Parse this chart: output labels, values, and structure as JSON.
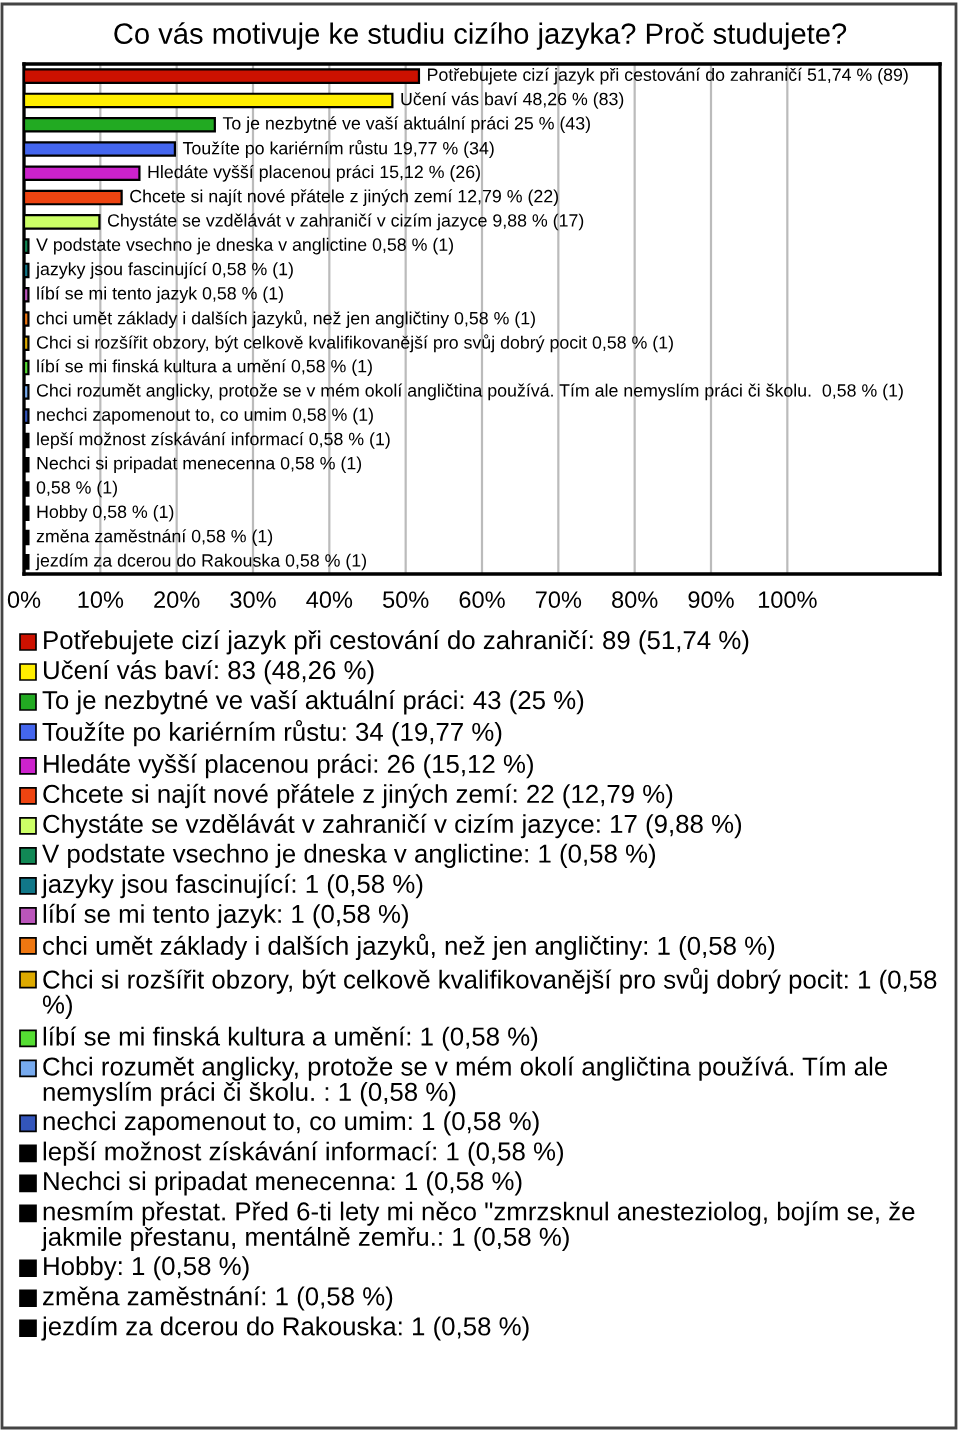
{
  "chart_data": {
    "type": "bar",
    "orientation": "horizontal",
    "title": "Co vás motivuje ke studiu cizího jazyka? Proč studujete?",
    "categories": [
      null,
      null,
      null,
      null,
      null,
      null,
      null,
      null,
      null,
      null,
      null,
      null,
      null,
      null,
      null,
      null,
      null,
      null,
      null,
      null,
      null
    ],
    "values": [
      51.74,
      48.26,
      25,
      19.77,
      15.12,
      12.79,
      9.88,
      0.58,
      0.58,
      0.58,
      0.58,
      0.58,
      0.58,
      0.58,
      0.58,
      0.58,
      0.58,
      0.58,
      0.58,
      0.58,
      0.58
    ],
    "colors": [
      "#cc1100",
      "#ffee00",
      "#22aa22",
      "#4466ee",
      "#cc22cc",
      "#ee4411",
      "#ccff66",
      "#118855",
      "#117788",
      "#bb55bb",
      "#ee7711",
      "#ddaa00",
      "#55dd33",
      "#77aaee",
      "#3355bb",
      "#000000",
      "#000000",
      "#000000",
      "#000000",
      "#000000",
      "#000000"
    ],
    "value_labels": [
      "Potřebujete cizí jazyk při cestování do zahraničí 51,74 % (89)",
      "Učení vás baví 48,26 % (83)",
      "To je nezbytné ve vaší aktuální práci 25 % (43)",
      "Toužíte po kariérním růstu 19,77 % (34)",
      "Hledáte vyšší placenou práci 15,12 % (26)",
      "Chcete si najít nové přátele z jiných zemí 12,79 % (22)",
      "Chystáte se vzdělávát v zahraničí v cizím jazyce 9,88 % (17)",
      "V podstate vsechno je dneska v anglictine 0,58 % (1)",
      "jazyky jsou fascinující 0,58 % (1)",
      "líbí se mi tento jazyk 0,58 % (1)",
      "chci umět základy i dalších jazyků, než jen angličtiny 0,58 % (1)",
      "Chci si rozšířit obzory, být celkově kvalifikovanější pro svůj dobrý pocit 0,58 % (1)",
      "líbí se mi finská kultura a umění 0,58 % (1)",
      "Chci rozumět anglicky, protože se v mém okolí angličtina používá. Tím ale nemyslím práci či školu.  0,58 % (1)",
      "nechci zapomenout to, co umim 0,58 % (1)",
      "lepší možnost získávání informací 0,58 % (1)",
      "Nechci si pripadat menecenna 0,58 % (1)",
      "0,58 % (1)",
      "Hobby 0,58 % (1)",
      "změna zaměstnání 0,58 % (1)",
      "jezdím za dcerou do Rakouska 0,58 % (1)"
    ],
    "xlim": [
      0,
      120
    ],
    "xticks": [
      {
        "value": 0,
        "label": "0%"
      },
      {
        "value": 10,
        "label": "10%"
      },
      {
        "value": 20,
        "label": "20%"
      },
      {
        "value": 30,
        "label": "30%"
      },
      {
        "value": 40,
        "label": "40%"
      },
      {
        "value": 50,
        "label": "50%"
      },
      {
        "value": 60,
        "label": "60%"
      },
      {
        "value": 70,
        "label": "70%"
      },
      {
        "value": 80,
        "label": "80%"
      },
      {
        "value": 90,
        "label": "90%"
      },
      {
        "value": 100,
        "label": "100%"
      }
    ],
    "grid": "x",
    "tick_labels": "x",
    "annotations": [
      "Potřebujete cizí jazyk při cestování do zahraničí: 89 (51,74 %)",
      "Učení vás baví: 83 (48,26 %)",
      "To je nezbytné ve vaší aktuální práci: 43 (25 %)",
      "Toužíte po kariérním růstu: 34 (19,77 %)",
      "Hledáte vyšší placenou práci: 26 (15,12 %)",
      "Chcete si najít nové přátele z jiných zemí: 22 (12,79 %)",
      "Chystáte se vzdělávát v zahraničí v cizím jazyce: 17 (9,88 %)",
      "V podstate vsechno je dneska v anglictine: 1 (0,58 %)",
      "jazyky jsou fascinující: 1 (0,58 %)",
      "líbí se mi tento jazyk: 1 (0,58 %)",
      "chci umět základy i dalších jazyků, než jen angličtiny: 1 (0,58 %)",
      "Chci si rozšířit obzory, být celkově kvalifikovanější pro svůj dobrý pocit: 1 (0,58 %)",
      "líbí se mi finská kultura a umění: 1 (0,58 %)",
      "Chci rozumět anglicky, protože se v mém okolí angličtina používá. Tím ale nemyslím práci či školu. : 1 (0,58 %)",
      "nechci zapomenout to, co umim: 1 (0,58 %)",
      "lepší možnost získávání informací: 1 (0,58 %)",
      "Nechci si pripadat menecenna: 1 (0,58 %)",
      "nesmím přestat. Před 6-ti lety mi něco \"zmrzsknul anesteziolog, bojím se, že jakmile přestanu, mentálně zemřu.: 1 (0,58 %)",
      "Hobby: 1 (0,58 %)",
      "změna zaměstnání: 1 (0,58 %)",
      "jezdím za dcerou do Rakouska: 1 (0,58 %)"
    ]
  }
}
